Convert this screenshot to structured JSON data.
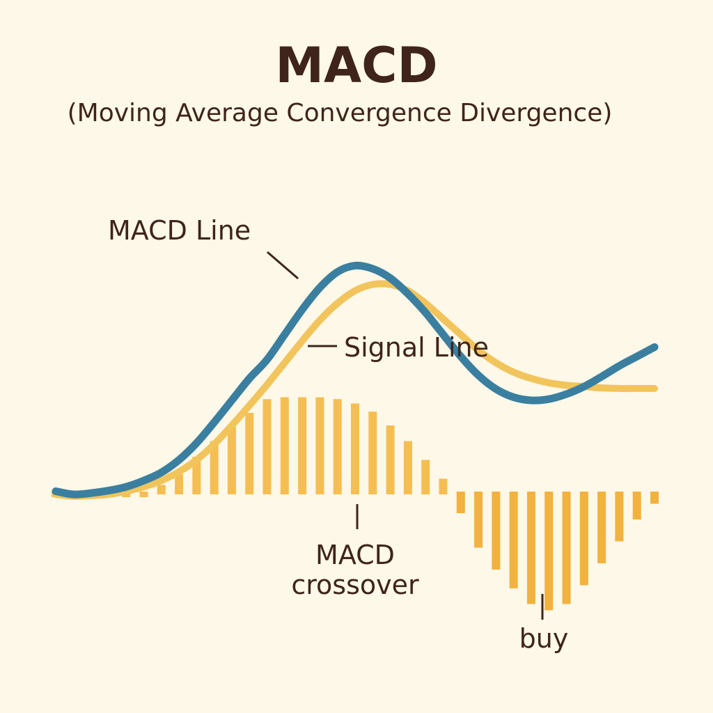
{
  "chart_data": {
    "type": "line",
    "title": "MACD",
    "subtitle": "(Moving Average Convergence Divergence)",
    "x": [
      0,
      1,
      2,
      3,
      4,
      5,
      6,
      7,
      8,
      9,
      10,
      11,
      12,
      13,
      14,
      15,
      16,
      17,
      18,
      19,
      20,
      21,
      22,
      23,
      24,
      25,
      26,
      27,
      28,
      29,
      30,
      31,
      32,
      33,
      34
    ],
    "series": [
      {
        "name": "MACD Line",
        "color": "#3a7fa0",
        "values": [
          0.05,
          0.0,
          0.02,
          0.06,
          0.12,
          0.22,
          0.35,
          0.55,
          0.82,
          1.15,
          1.5,
          1.85,
          2.15,
          2.55,
          2.95,
          3.3,
          3.55,
          3.65,
          3.6,
          3.45,
          3.2,
          2.9,
          2.55,
          2.2,
          1.9,
          1.68,
          1.55,
          1.5,
          1.52,
          1.6,
          1.72,
          1.88,
          2.05,
          2.2,
          2.35
        ]
      },
      {
        "name": "Signal Line",
        "color": "#f2c45c",
        "values": [
          0.0,
          -0.03,
          -0.02,
          0.0,
          0.05,
          0.12,
          0.22,
          0.36,
          0.55,
          0.8,
          1.1,
          1.42,
          1.75,
          2.1,
          2.45,
          2.78,
          3.05,
          3.25,
          3.35,
          3.35,
          3.25,
          3.05,
          2.8,
          2.55,
          2.3,
          2.1,
          1.95,
          1.85,
          1.78,
          1.74,
          1.72,
          1.7,
          1.69,
          1.69,
          1.69
        ]
      }
    ],
    "histogram": {
      "name": "",
      "color": "#f5be52",
      "values": [
        0.1,
        0.1,
        0.1,
        0.1,
        0.1,
        0.12,
        0.15,
        0.32,
        0.6,
        0.85,
        1.08,
        1.3,
        1.52,
        1.55,
        1.55,
        1.55,
        1.52,
        1.45,
        1.32,
        1.1,
        0.85,
        0.55,
        0.25,
        -0.3,
        -0.85,
        -1.2,
        -1.5,
        -1.75,
        -1.85,
        -1.75,
        -1.45,
        -1.1,
        -0.75,
        -0.4,
        -0.15
      ]
    },
    "ylim": [
      -2,
      4
    ],
    "annotations": [
      {
        "id": "macd-line",
        "text": "MACD Line"
      },
      {
        "id": "signal-line",
        "text": "Signal Line"
      },
      {
        "id": "crossover",
        "lines": [
          "MACD",
          "crossover"
        ]
      },
      {
        "id": "buy",
        "text": "buy"
      }
    ],
    "grid": false,
    "legend": "none"
  }
}
